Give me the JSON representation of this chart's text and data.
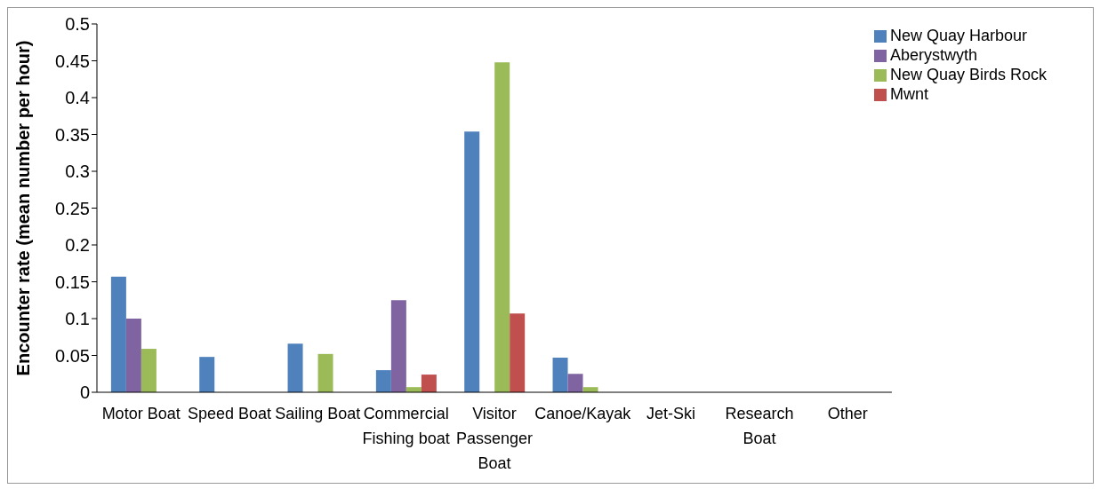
{
  "chart_data": {
    "type": "bar",
    "ylabel": "Encounter rate (mean number per hour)",
    "categories": [
      "Motor Boat",
      "Speed Boat",
      "Sailing Boat",
      "Commercial Fishing boat",
      "Visitor Passenger Boat",
      "Canoe/Kayak",
      "Jet-Ski",
      "Research Boat",
      "Other"
    ],
    "series": [
      {
        "name": "New Quay Harbour",
        "color": "#4f81bd",
        "values": [
          0.157,
          0.048,
          0.066,
          0.03,
          0.354,
          0.047,
          0,
          0,
          0
        ]
      },
      {
        "name": "Aberystwyth",
        "color": "#8064a2",
        "values": [
          0.1,
          0,
          0,
          0.125,
          0,
          0.025,
          0,
          0,
          0
        ]
      },
      {
        "name": "New Quay Birds Rock",
        "color": "#9bbb59",
        "values": [
          0.059,
          0,
          0.052,
          0.007,
          0.448,
          0.007,
          0,
          0,
          0
        ]
      },
      {
        "name": "Mwnt",
        "color": "#c0504d",
        "values": [
          0,
          0,
          0,
          0.024,
          0.107,
          0,
          0,
          0,
          0
        ]
      }
    ],
    "ylim": [
      0,
      0.5
    ],
    "yticks": [
      0,
      0.05,
      0.1,
      0.15,
      0.2,
      0.25,
      0.3,
      0.35,
      0.4,
      0.45,
      0.5
    ],
    "grid": false,
    "legend": "top right"
  }
}
